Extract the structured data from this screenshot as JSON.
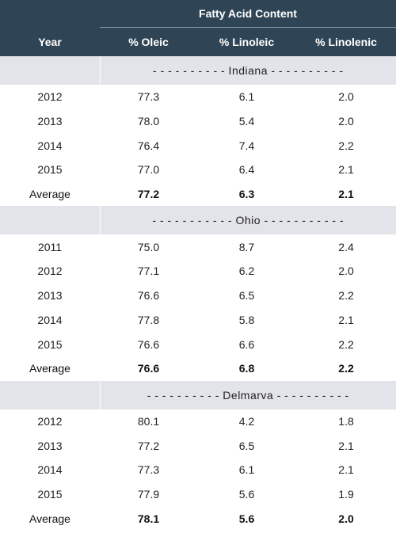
{
  "header": {
    "group_title": "Fatty Acid Content",
    "year_label": "Year",
    "columns": [
      "% Oleic",
      "% Linoleic",
      "% Linolenic"
    ]
  },
  "sections": [
    {
      "region_label": "- - - - - - - - - -  Indiana  - - - - - - - - - -",
      "rows": [
        {
          "year": "2012",
          "oleic": "77.3",
          "linoleic": "6.1",
          "linolenic": "2.0"
        },
        {
          "year": "2013",
          "oleic": "78.0",
          "linoleic": "5.4",
          "linolenic": "2.0"
        },
        {
          "year": "2014",
          "oleic": "76.4",
          "linoleic": "7.4",
          "linolenic": "2.2"
        },
        {
          "year": "2015",
          "oleic": "77.0",
          "linoleic": "6.4",
          "linolenic": "2.1"
        }
      ],
      "average": {
        "year": "Average",
        "oleic": "77.2",
        "linoleic": "6.3",
        "linolenic": "2.1"
      }
    },
    {
      "region_label": "- - - - - - - - - - -  Ohio  - - - - - - - - - - -",
      "rows": [
        {
          "year": "2011",
          "oleic": "75.0",
          "linoleic": "8.7",
          "linolenic": "2.4"
        },
        {
          "year": "2012",
          "oleic": "77.1",
          "linoleic": "6.2",
          "linolenic": "2.0"
        },
        {
          "year": "2013",
          "oleic": "76.6",
          "linoleic": "6.5",
          "linolenic": "2.2"
        },
        {
          "year": "2014",
          "oleic": "77.8",
          "linoleic": "5.8",
          "linolenic": "2.1"
        },
        {
          "year": "2015",
          "oleic": "76.6",
          "linoleic": "6.6",
          "linolenic": "2.2"
        }
      ],
      "average": {
        "year": "Average",
        "oleic": "76.6",
        "linoleic": "6.8",
        "linolenic": "2.2"
      }
    },
    {
      "region_label": "- - - - - - - - - -  Delmarva  - - - - - - - - - -",
      "rows": [
        {
          "year": "2012",
          "oleic": "80.1",
          "linoleic": "4.2",
          "linolenic": "1.8"
        },
        {
          "year": "2013",
          "oleic": "77.2",
          "linoleic": "6.5",
          "linolenic": "2.1"
        },
        {
          "year": "2014",
          "oleic": "77.3",
          "linoleic": "6.1",
          "linolenic": "2.1"
        },
        {
          "year": "2015",
          "oleic": "77.9",
          "linoleic": "5.6",
          "linolenic": "1.9"
        }
      ],
      "average": {
        "year": "Average",
        "oleic": "78.1",
        "linoleic": "5.6",
        "linolenic": "2.0"
      }
    }
  ]
}
